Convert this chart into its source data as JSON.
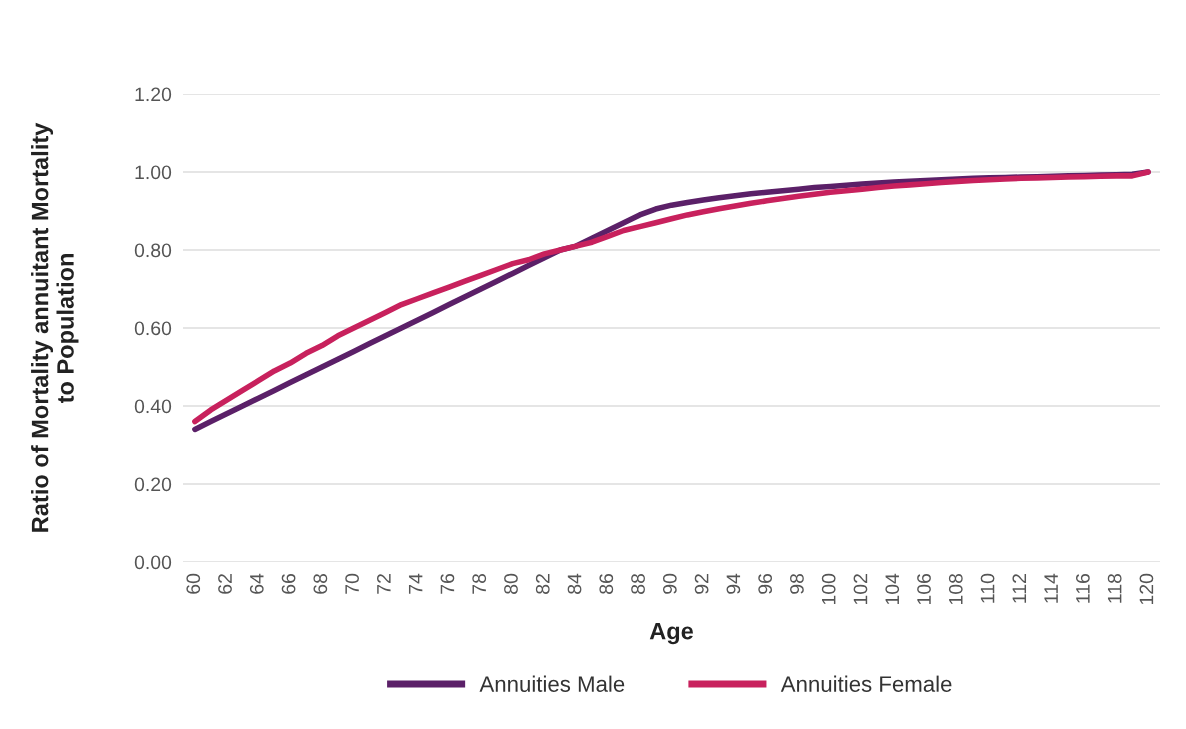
{
  "chart_data": {
    "type": "line",
    "xlabel": "Age",
    "ylabel": "Ratio of Mortality annuitant Mortality\nto Population",
    "categories": [
      "60",
      null,
      "62",
      null,
      "64",
      null,
      "66",
      null,
      "68",
      null,
      "70",
      null,
      "72",
      null,
      "74",
      null,
      "76",
      null,
      "78",
      null,
      "80",
      null,
      "82",
      null,
      "84",
      null,
      "86",
      null,
      "88",
      null,
      "90",
      null,
      "92",
      null,
      "94",
      null,
      "96",
      null,
      "98",
      null,
      "100",
      null,
      "102",
      null,
      "104",
      null,
      "106",
      null,
      "108",
      null,
      "110",
      null,
      "112",
      null,
      "114",
      null,
      "116",
      null,
      "118",
      null,
      "120"
    ],
    "series": [
      {
        "name": "Annuities Male",
        "color": "#5b2068",
        "values": [
          0.34,
          0.36,
          0.38,
          0.4,
          0.42,
          0.44,
          0.46,
          0.48,
          0.5,
          0.52,
          0.54,
          0.56,
          0.58,
          0.6,
          0.62,
          0.64,
          0.66,
          0.68,
          0.7,
          0.72,
          0.74,
          0.76,
          0.78,
          0.8,
          0.81,
          0.83,
          0.85,
          0.87,
          0.89,
          0.905,
          0.915,
          0.922,
          0.928,
          0.934,
          0.939,
          0.944,
          0.948,
          0.952,
          0.956,
          0.96,
          0.963,
          0.966,
          0.969,
          0.972,
          0.974,
          0.976,
          0.978,
          0.98,
          0.982,
          0.984,
          0.985,
          0.986,
          0.987,
          0.988,
          0.989,
          0.99,
          0.991,
          0.992,
          0.993,
          0.994,
          1.0
        ]
      },
      {
        "name": "Annuities Female",
        "color": "#c8215d",
        "values": [
          0.36,
          0.39,
          0.415,
          0.44,
          0.465,
          0.49,
          0.51,
          0.535,
          0.555,
          0.58,
          0.6,
          0.62,
          0.64,
          0.66,
          0.675,
          0.69,
          0.705,
          0.72,
          0.735,
          0.75,
          0.765,
          0.775,
          0.79,
          0.8,
          0.81,
          0.82,
          0.835,
          0.85,
          0.86,
          0.87,
          0.88,
          0.89,
          0.898,
          0.906,
          0.913,
          0.92,
          0.926,
          0.932,
          0.938,
          0.943,
          0.948,
          0.952,
          0.956,
          0.96,
          0.964,
          0.967,
          0.97,
          0.973,
          0.976,
          0.978,
          0.98,
          0.982,
          0.984,
          0.985,
          0.986,
          0.987,
          0.988,
          0.989,
          0.99,
          0.99,
          1.0
        ]
      }
    ],
    "ylim": [
      0,
      1.2
    ],
    "yticks": [
      {
        "value": 0,
        "label": "0.00"
      },
      {
        "value": 0.2,
        "label": "0.20"
      },
      {
        "value": 0.4,
        "label": "0.40"
      },
      {
        "value": 0.6,
        "label": "0.60"
      },
      {
        "value": 0.8,
        "label": "0.80"
      },
      {
        "value": 1.0,
        "label": "1.00"
      },
      {
        "value": 1.2,
        "label": "1.20"
      }
    ],
    "grid": "y",
    "legend": "bottom",
    "line_style": "solid",
    "marker": "none"
  }
}
